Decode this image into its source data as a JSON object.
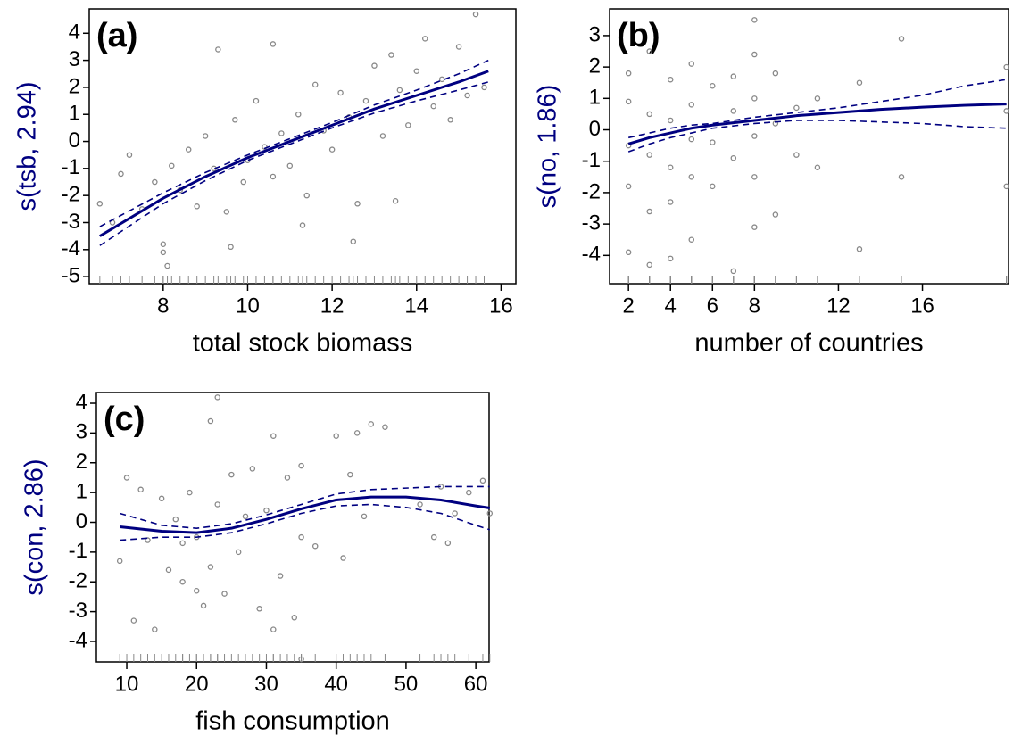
{
  "chart_data": [
    {
      "type": "scatter",
      "title": "(a)",
      "xlabel": "total stock biomass",
      "ylabel": "s(tsb, 2.94)",
      "ylabel_color": "#000080",
      "xlim": [
        6.25,
        16.35
      ],
      "ylim": [
        -5.26,
        4.9
      ],
      "xticks": [
        8,
        10,
        12,
        14,
        16
      ],
      "yticks": [
        -5,
        -4,
        -3,
        -2,
        -1,
        0,
        1,
        2,
        3,
        4
      ],
      "points": {
        "color": "#888888",
        "x": [
          6.5,
          6.8,
          7.0,
          7.2,
          7.5,
          7.8,
          8.0,
          8.1,
          8.2,
          8.4,
          8.6,
          8.8,
          9.0,
          9.2,
          9.3,
          9.5,
          9.7,
          9.9,
          10.0,
          10.2,
          10.4,
          10.6,
          10.8,
          11.0,
          11.2,
          11.4,
          11.6,
          11.8,
          12.0,
          12.2,
          12.4,
          12.6,
          12.8,
          13.0,
          13.2,
          13.4,
          13.6,
          13.8,
          14.0,
          14.2,
          14.4,
          14.6,
          14.8,
          15.0,
          15.2,
          15.4,
          15.6,
          9.6,
          10.6,
          8.0,
          12.5,
          13.5,
          11.3
        ],
        "y": [
          -2.3,
          -3.0,
          -1.2,
          -0.5,
          -2.5,
          -1.5,
          -3.8,
          -4.6,
          -0.9,
          -1.8,
          -0.3,
          -2.4,
          0.2,
          -1.0,
          3.4,
          -2.6,
          0.8,
          -1.5,
          -0.7,
          1.5,
          -0.2,
          3.6,
          0.3,
          -0.9,
          1.0,
          -2.0,
          2.1,
          0.4,
          -0.3,
          1.8,
          0.9,
          -2.3,
          1.5,
          2.8,
          0.2,
          3.2,
          1.9,
          0.6,
          2.6,
          3.8,
          1.3,
          2.3,
          0.8,
          3.5,
          1.7,
          4.7,
          2.0,
          -3.9,
          -1.3,
          -4.1,
          -3.7,
          -2.2,
          -3.1
        ]
      },
      "fit": {
        "color": "#000080",
        "x": [
          6.5,
          8,
          9,
          10,
          11,
          12,
          13,
          14,
          15,
          15.7
        ],
        "values": [
          -3.5,
          -2.1,
          -1.3,
          -0.6,
          0,
          0.6,
          1.2,
          1.7,
          2.2,
          2.6
        ],
        "upper": [
          -3.15,
          -1.9,
          -1.15,
          -0.5,
          0.1,
          0.7,
          1.35,
          1.9,
          2.5,
          3.0
        ],
        "lower": [
          -3.85,
          -2.3,
          -1.45,
          -0.7,
          -0.1,
          0.5,
          1.05,
          1.5,
          1.9,
          2.2
        ]
      }
    },
    {
      "type": "scatter",
      "title": "(b)",
      "xlabel": "number of countries",
      "ylabel": "s(no, 1.86)",
      "ylabel_color": "#000080",
      "xlim": [
        1.1,
        20.1
      ],
      "ylim": [
        -4.9,
        3.85
      ],
      "xticks": [
        2,
        4,
        6,
        8,
        12,
        16
      ],
      "yticks": [
        -4,
        -3,
        -2,
        -1,
        0,
        1,
        2,
        3
      ],
      "points": {
        "color": "#888888",
        "x": [
          2,
          2,
          2,
          2,
          2,
          3,
          3,
          3,
          3,
          3,
          4,
          4,
          4,
          4,
          4,
          5,
          5,
          5,
          5,
          5,
          6,
          6,
          6,
          7,
          7,
          7,
          7,
          8,
          8,
          8,
          8,
          8,
          8,
          9,
          9,
          9,
          10,
          10,
          11,
          11,
          13,
          13,
          15,
          15,
          20,
          20,
          20
        ],
        "y": [
          1.8,
          0.9,
          -0.5,
          -1.8,
          -3.9,
          2.5,
          0.5,
          -0.8,
          -2.6,
          -4.3,
          1.6,
          0.3,
          -1.2,
          -2.3,
          -4.1,
          2.1,
          0.8,
          -0.3,
          -1.5,
          -3.5,
          1.4,
          -0.4,
          -1.8,
          1.7,
          0.6,
          -0.9,
          -4.5,
          3.5,
          2.4,
          1.0,
          -0.2,
          -1.5,
          -3.1,
          1.8,
          0.2,
          -2.7,
          0.7,
          -0.8,
          1.0,
          -1.2,
          1.5,
          -3.8,
          2.9,
          -1.5,
          2.0,
          0.6,
          -1.8
        ]
      },
      "fit": {
        "color": "#000080",
        "x": [
          2,
          3,
          4,
          5,
          6,
          8,
          10,
          12,
          14,
          16,
          18,
          20
        ],
        "values": [
          -0.45,
          -0.25,
          -0.1,
          0.05,
          0.15,
          0.3,
          0.45,
          0.55,
          0.65,
          0.72,
          0.78,
          0.82
        ],
        "upper": [
          -0.25,
          -0.1,
          0.05,
          0.15,
          0.2,
          0.4,
          0.55,
          0.7,
          0.9,
          1.1,
          1.4,
          1.6
        ],
        "lower": [
          -0.7,
          -0.45,
          -0.25,
          -0.1,
          0.05,
          0.2,
          0.3,
          0.3,
          0.25,
          0.2,
          0.1,
          0.05
        ]
      }
    },
    {
      "type": "scatter",
      "title": "(c)",
      "xlabel": "fish consumption",
      "ylabel": "s(con, 2.86)",
      "ylabel_color": "#000080",
      "xlim": [
        5.65,
        61.9
      ],
      "ylim": [
        -4.69,
        4.36
      ],
      "xticks": [
        10,
        20,
        30,
        40,
        50,
        60
      ],
      "yticks": [
        -4,
        -3,
        -2,
        -1,
        0,
        1,
        2,
        3,
        4
      ],
      "points": {
        "color": "#888888",
        "x": [
          9,
          10,
          11,
          12,
          13,
          14,
          15,
          16,
          17,
          18,
          19,
          20,
          21,
          22,
          22,
          23,
          23,
          24,
          25,
          26,
          27,
          28,
          29,
          30,
          31,
          32,
          33,
          34,
          35,
          35,
          35,
          37,
          40,
          41,
          42,
          43,
          44,
          45,
          47,
          52,
          54,
          55,
          56,
          57,
          59,
          61,
          62,
          18,
          20,
          31
        ],
        "y": [
          -1.3,
          1.5,
          -3.3,
          1.1,
          -0.6,
          -3.6,
          0.8,
          -1.6,
          0.1,
          -2.0,
          1.0,
          -0.5,
          -2.8,
          3.4,
          -1.5,
          4.2,
          0.6,
          -2.4,
          1.6,
          -1.0,
          0.2,
          1.8,
          -2.9,
          0.4,
          2.9,
          -1.8,
          1.5,
          -3.2,
          -4.6,
          -0.5,
          1.9,
          -0.8,
          2.9,
          -1.2,
          1.6,
          3.0,
          0.2,
          3.3,
          3.2,
          0.6,
          -0.5,
          1.2,
          -0.7,
          0.3,
          1.0,
          1.4,
          0.3,
          -0.7,
          -2.3,
          -3.6
        ]
      },
      "fit": {
        "color": "#000080",
        "x": [
          9,
          15,
          20,
          25,
          30,
          35,
          40,
          45,
          50,
          55,
          60,
          62
        ],
        "values": [
          -0.15,
          -0.3,
          -0.35,
          -0.2,
          0.1,
          0.45,
          0.75,
          0.85,
          0.85,
          0.75,
          0.55,
          0.48
        ],
        "upper": [
          0.3,
          -0.1,
          -0.2,
          -0.05,
          0.25,
          0.6,
          0.95,
          1.1,
          1.15,
          1.2,
          1.2,
          1.2
        ],
        "lower": [
          -0.6,
          -0.5,
          -0.5,
          -0.35,
          -0.05,
          0.3,
          0.55,
          0.6,
          0.5,
          0.3,
          -0.1,
          -0.25
        ]
      }
    }
  ]
}
